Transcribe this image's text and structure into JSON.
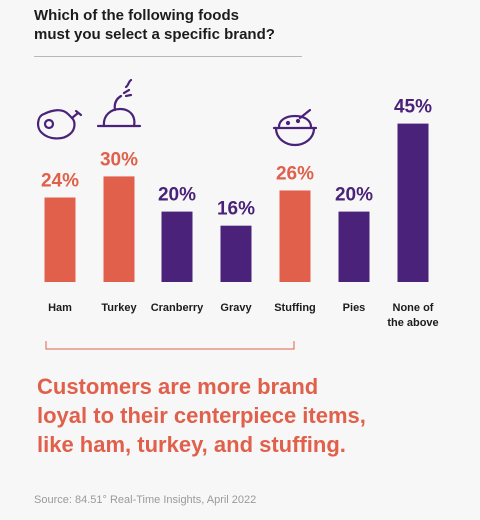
{
  "title_line1": "Which of the following foods",
  "title_line2": "must you select a specific brand?",
  "chart_data": {
    "type": "bar",
    "categories": [
      "Ham",
      "Turkey",
      "Cranberry",
      "Gravy",
      "Stuffing",
      "Pies",
      "None of the above"
    ],
    "category_lines": [
      [
        "Ham"
      ],
      [
        "Turkey"
      ],
      [
        "Cranberry"
      ],
      [
        "Gravy"
      ],
      [
        "Stuffing"
      ],
      [
        "Pies"
      ],
      [
        "None of",
        "the above"
      ]
    ],
    "values": [
      24,
      30,
      20,
      16,
      26,
      20,
      45
    ],
    "value_labels": [
      "24%",
      "30%",
      "20%",
      "16%",
      "26%",
      "20%",
      "45%"
    ],
    "highlighted": [
      true,
      true,
      false,
      false,
      true,
      false,
      false
    ],
    "icons": [
      "ham-icon",
      "turkey-icon",
      null,
      null,
      "stuffing-bowl-icon",
      null,
      null
    ],
    "ylim": [
      0,
      50
    ],
    "grid": false,
    "colors": {
      "highlight": "#e0604b",
      "default": "#4a2279"
    }
  },
  "tagline_line1": "Customers are more brand",
  "tagline_line2": "loyal to their centerpiece items,",
  "tagline_line3": "like ham, turkey, and stuffing.",
  "source": "Source: 84.51° Real-Time Insights, April 2022"
}
